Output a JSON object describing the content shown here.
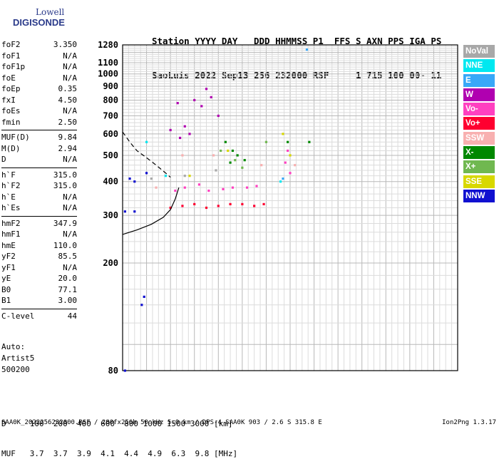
{
  "logo": {
    "line1": "Lowell",
    "line2": "DIGISONDE"
  },
  "header": {
    "line1": "Station YYYY DAY   DDD HHMMSS P1  FFS S AXN PPS IGA PS",
    "line2": "SaoLuis 2022 Sep13 256 232000 RSF     1 715 100 00- 11"
  },
  "params_group1": [
    {
      "k": "foF2",
      "v": "3.350"
    },
    {
      "k": "foF1",
      "v": "N/A"
    },
    {
      "k": "foF1p",
      "v": "N/A"
    },
    {
      "k": "foE",
      "v": "N/A"
    },
    {
      "k": "foEp",
      "v": "0.35"
    },
    {
      "k": "fxI",
      "v": "4.50"
    },
    {
      "k": "foEs",
      "v": "N/A"
    },
    {
      "k": "fmin",
      "v": "2.50"
    }
  ],
  "params_group2": [
    {
      "k": "MUF(D)",
      "v": "9.84"
    },
    {
      "k": "M(D)",
      "v": "2.94"
    },
    {
      "k": "D",
      "v": "N/A"
    }
  ],
  "params_group3": [
    {
      "k": "h`F",
      "v": "315.0"
    },
    {
      "k": "h`F2",
      "v": "315.0"
    },
    {
      "k": "h`E",
      "v": "N/A"
    },
    {
      "k": "h`Es",
      "v": "N/A"
    }
  ],
  "params_group4": [
    {
      "k": "hmF2",
      "v": "347.9"
    },
    {
      "k": "hmF1",
      "v": "N/A"
    },
    {
      "k": "hmE",
      "v": "110.0"
    },
    {
      "k": "yF2",
      "v": "85.5"
    },
    {
      "k": "yF1",
      "v": "N/A"
    },
    {
      "k": "yE",
      "v": "20.0"
    },
    {
      "k": "B0",
      "v": "77.1"
    },
    {
      "k": "B1",
      "v": "3.00"
    }
  ],
  "params_group5": [
    {
      "k": "C-level",
      "v": "44"
    }
  ],
  "auto": {
    "l1": "Auto:",
    "l2": "Artist5",
    "l3": "500200"
  },
  "legend": [
    {
      "label": "NoVal",
      "color": "#a8a8a8"
    },
    {
      "label": "NNE",
      "color": "#00e8f0"
    },
    {
      "label": "E",
      "color": "#38a8f8"
    },
    {
      "label": "W",
      "color": "#b000b0"
    },
    {
      "label": "Vo-",
      "color": "#ff40c0"
    },
    {
      "label": "Vo+",
      "color": "#ff0030"
    },
    {
      "label": "SSW",
      "color": "#f8b0b0"
    },
    {
      "label": "X-",
      "color": "#008800"
    },
    {
      "label": "X+",
      "color": "#70b850"
    },
    {
      "label": "SSE",
      "color": "#d8d800"
    },
    {
      "label": "NNW",
      "color": "#1010d0"
    }
  ],
  "dmuf": {
    "line1": "D     100  200  400  600  800 1000 1500 3000 [km]",
    "line2": "MUF   3.7  3.7  3.9  4.1  4.4  4.9  6.3  9.8 [MHz]"
  },
  "footer": "SAA0K_2022256232000.RSF / 280fx256h 50 kHz 5.0 km / DPS-4 SAA0K 903 / 2.6 S 315.8 E",
  "version": "Ion2Png 1.3.17",
  "chart_data": {
    "type": "scatter",
    "title": "",
    "xlabel": "",
    "ylabel": "",
    "xlim": [
      1,
      15
    ],
    "ylim": [
      80,
      1280
    ],
    "x_ticks": [
      1,
      2,
      3,
      4,
      5,
      6,
      7,
      8,
      9,
      10,
      11,
      12,
      13,
      14,
      15
    ],
    "y_ticks": [
      80,
      200,
      300,
      400,
      500,
      600,
      700,
      800,
      900,
      1000,
      1100,
      1280
    ],
    "y_tick_labels": [
      "80",
      "200",
      "300",
      "400",
      "500",
      "600",
      "700",
      "800",
      "900",
      "1000",
      "1100",
      "1280"
    ],
    "y_scale": "log",
    "grid": true,
    "legend_placement": "right",
    "series": [
      {
        "name": "W",
        "points": [
          [
            3.0,
            620
          ],
          [
            3.3,
            780
          ],
          [
            3.6,
            640
          ],
          [
            3.8,
            600
          ],
          [
            4.0,
            800
          ],
          [
            4.3,
            760
          ],
          [
            4.5,
            880
          ],
          [
            4.7,
            820
          ],
          [
            5.0,
            700
          ],
          [
            3.4,
            580
          ]
        ]
      },
      {
        "name": "Vo-",
        "points": [
          [
            3.2,
            370
          ],
          [
            3.6,
            380
          ],
          [
            4.2,
            390
          ],
          [
            4.6,
            370
          ],
          [
            5.2,
            375
          ],
          [
            5.6,
            380
          ],
          [
            6.2,
            380
          ],
          [
            6.6,
            385
          ],
          [
            7.8,
            470
          ],
          [
            7.9,
            520
          ],
          [
            8.0,
            430
          ]
        ]
      },
      {
        "name": "Vo+",
        "points": [
          [
            3.0,
            320
          ],
          [
            3.5,
            325
          ],
          [
            4.0,
            330
          ],
          [
            4.5,
            320
          ],
          [
            5.0,
            325
          ],
          [
            5.5,
            330
          ],
          [
            6.0,
            330
          ],
          [
            6.5,
            325
          ],
          [
            6.9,
            330
          ]
        ]
      },
      {
        "name": "X-",
        "points": [
          [
            5.3,
            560
          ],
          [
            5.6,
            520
          ],
          [
            5.8,
            500
          ],
          [
            5.5,
            470
          ],
          [
            6.1,
            480
          ],
          [
            7.9,
            560
          ],
          [
            8.8,
            560
          ]
        ]
      },
      {
        "name": "X+",
        "points": [
          [
            5.1,
            520
          ],
          [
            5.7,
            480
          ],
          [
            6.0,
            450
          ],
          [
            7.0,
            560
          ]
        ]
      },
      {
        "name": "SSE",
        "points": [
          [
            3.8,
            420
          ],
          [
            5.4,
            520
          ],
          [
            7.7,
            600
          ],
          [
            8.0,
            500
          ]
        ]
      },
      {
        "name": "NNE",
        "points": [
          [
            2.0,
            560
          ],
          [
            2.8,
            420
          ],
          [
            7.6,
            400
          ]
        ]
      },
      {
        "name": "E",
        "points": [
          [
            7.7,
            410
          ],
          [
            8.7,
            1230
          ]
        ]
      },
      {
        "name": "NNW",
        "points": [
          [
            1.3,
            410
          ],
          [
            1.5,
            400
          ],
          [
            1.1,
            310
          ],
          [
            1.5,
            310
          ],
          [
            1.8,
            140
          ],
          [
            1.9,
            150
          ],
          [
            1.1,
            80
          ],
          [
            2.0,
            430
          ]
        ]
      },
      {
        "name": "SSW",
        "points": [
          [
            2.4,
            380
          ],
          [
            3.5,
            500
          ],
          [
            4.8,
            500
          ],
          [
            6.8,
            460
          ],
          [
            8.2,
            460
          ]
        ]
      },
      {
        "name": "NoVal",
        "points": [
          [
            2.2,
            410
          ],
          [
            3.6,
            420
          ],
          [
            4.9,
            440
          ]
        ]
      }
    ],
    "profile_solid": [
      [
        1.0,
        255
      ],
      [
        1.6,
        265
      ],
      [
        2.2,
        278
      ],
      [
        2.7,
        295
      ],
      [
        3.0,
        315
      ],
      [
        3.2,
        345
      ],
      [
        3.35,
        380
      ]
    ],
    "profile_dashed": [
      [
        1.0,
        610
      ],
      [
        1.3,
        560
      ],
      [
        1.6,
        520
      ],
      [
        2.0,
        490
      ],
      [
        2.4,
        460
      ],
      [
        2.8,
        430
      ],
      [
        3.0,
        415
      ]
    ]
  }
}
